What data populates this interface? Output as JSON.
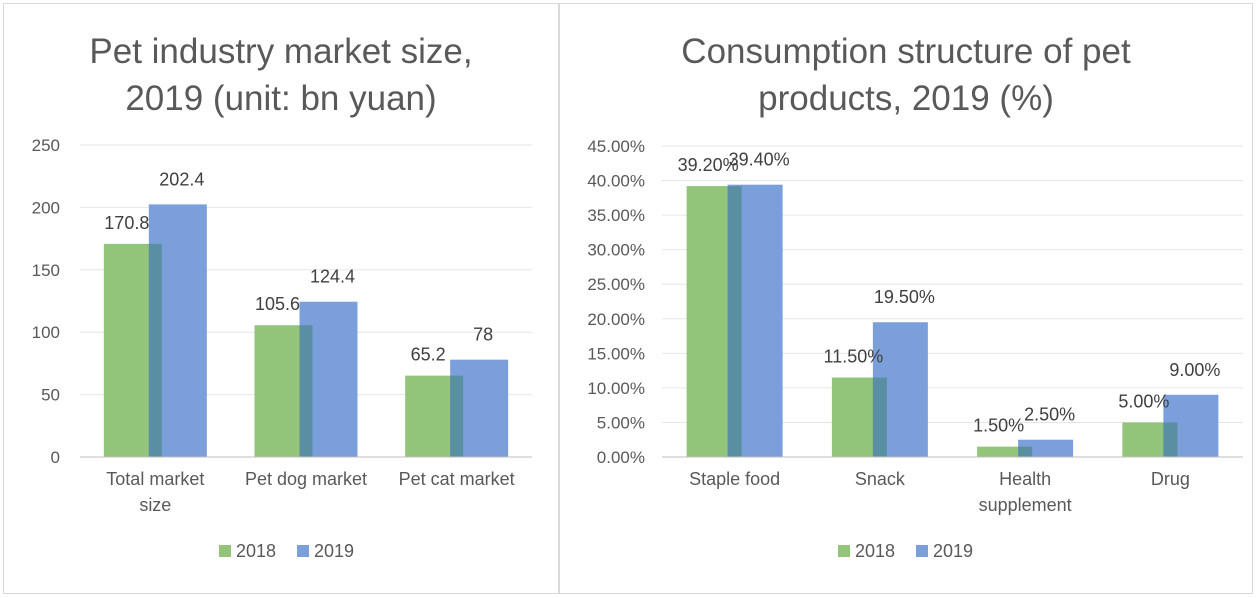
{
  "chart_data": [
    {
      "type": "bar",
      "title_lines": [
        "Pet industry market size,",
        "2019 (unit: bn yuan)"
      ],
      "categories": [
        [
          "Total market",
          "size"
        ],
        [
          "Pet dog market"
        ],
        [
          "Pet cat market"
        ]
      ],
      "series": [
        {
          "name": "2018",
          "values": [
            170.8,
            105.6,
            65.2
          ],
          "labels": [
            "170.8",
            "105.6",
            "65.2"
          ],
          "color": "#92c57a"
        },
        {
          "name": "2019",
          "values": [
            202.4,
            124.4,
            78
          ],
          "labels": [
            "202.4",
            "124.4",
            "78"
          ],
          "color": "#7b9fdb"
        }
      ],
      "ylim": [
        0,
        250
      ],
      "yticks": [
        "0",
        "50",
        "100",
        "150",
        "200",
        "250"
      ],
      "grid": true,
      "legend": "bottom"
    },
    {
      "type": "bar",
      "title_lines": [
        "Consumption structure of pet",
        "products, 2019 (%)"
      ],
      "categories": [
        [
          "Staple food"
        ],
        [
          "Snack"
        ],
        [
          "Health",
          "supplement"
        ],
        [
          "Drug"
        ]
      ],
      "series": [
        {
          "name": "2018",
          "values": [
            39.2,
            11.5,
            1.5,
            5.0
          ],
          "labels": [
            "39.20%",
            "11.50%",
            "1.50%",
            "5.00%"
          ],
          "color": "#92c57a"
        },
        {
          "name": "2019",
          "values": [
            39.4,
            19.5,
            2.5,
            9.0
          ],
          "labels": [
            "39.40%",
            "19.50%",
            "2.50%",
            "9.00%"
          ],
          "color": "#7b9fdb"
        }
      ],
      "ylim": [
        0,
        45
      ],
      "yticks": [
        "0.00%",
        "5.00%",
        "10.00%",
        "15.00%",
        "20.00%",
        "25.00%",
        "30.00%",
        "35.00%",
        "40.00%",
        "45.00%"
      ],
      "grid": true,
      "legend": "bottom"
    }
  ]
}
